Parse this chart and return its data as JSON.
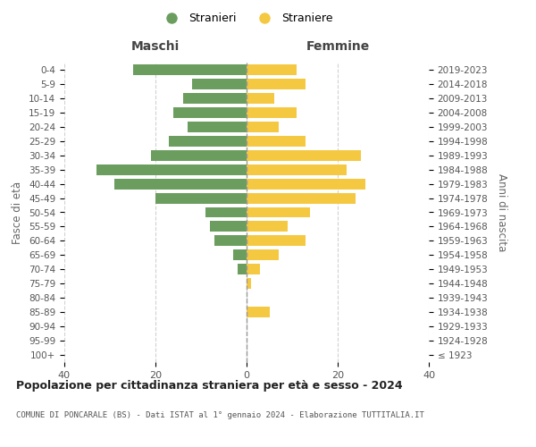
{
  "age_groups": [
    "100+",
    "95-99",
    "90-94",
    "85-89",
    "80-84",
    "75-79",
    "70-74",
    "65-69",
    "60-64",
    "55-59",
    "50-54",
    "45-49",
    "40-44",
    "35-39",
    "30-34",
    "25-29",
    "20-24",
    "15-19",
    "10-14",
    "5-9",
    "0-4"
  ],
  "birth_years": [
    "≤ 1923",
    "1924-1928",
    "1929-1933",
    "1934-1938",
    "1939-1943",
    "1944-1948",
    "1949-1953",
    "1954-1958",
    "1959-1963",
    "1964-1968",
    "1969-1973",
    "1974-1978",
    "1979-1983",
    "1984-1988",
    "1989-1993",
    "1994-1998",
    "1999-2003",
    "2004-2008",
    "2009-2013",
    "2014-2018",
    "2019-2023"
  ],
  "maschi": [
    0,
    0,
    0,
    0,
    0,
    0,
    2,
    3,
    7,
    8,
    9,
    20,
    29,
    33,
    21,
    17,
    13,
    16,
    14,
    12,
    25
  ],
  "femmine": [
    0,
    0,
    0,
    5,
    0,
    1,
    3,
    7,
    13,
    9,
    14,
    24,
    26,
    22,
    25,
    13,
    7,
    11,
    6,
    13,
    11
  ],
  "color_maschi": "#6b9e5e",
  "color_femmine": "#f5c842",
  "xlim": [
    -40,
    40
  ],
  "title": "Popolazione per cittadinanza straniera per età e sesso - 2024",
  "subtitle": "COMUNE DI PONCARALE (BS) - Dati ISTAT al 1° gennaio 2024 - Elaborazione TUTTITALIA.IT",
  "label_maschi": "Stranieri",
  "label_femmine": "Straniere",
  "xlabel_left": "Maschi",
  "xlabel_right": "Femmine",
  "ylabel_left": "Fasce di età",
  "ylabel_right": "Anni di nascita",
  "grid_color": "#cccccc",
  "xticks": [
    -40,
    -20,
    0,
    20,
    40
  ],
  "xticklabels": [
    "40",
    "20",
    "0",
    "20",
    "40"
  ]
}
